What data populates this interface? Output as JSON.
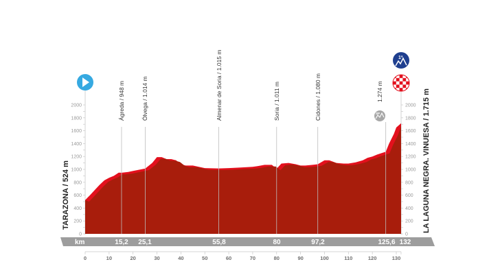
{
  "chart_data": {
    "type": "area",
    "title": "",
    "xlabel": "km",
    "ylabel": "m",
    "xlim": [
      0,
      132
    ],
    "ylim": [
      0,
      2000
    ],
    "grid": false,
    "x_ticks": [
      0,
      10,
      20,
      30,
      40,
      50,
      60,
      70,
      80,
      90,
      100,
      110,
      120,
      130
    ],
    "y_ticks": [
      0,
      200,
      400,
      600,
      800,
      1000,
      1200,
      1400,
      1600,
      1800,
      2000
    ],
    "profile": {
      "km": [
        0,
        2,
        4,
        6,
        8,
        10,
        12,
        14,
        15.2,
        18,
        20,
        22,
        25.1,
        28,
        30,
        32,
        34,
        36,
        38,
        40,
        42,
        45,
        50,
        55.8,
        60,
        65,
        70,
        72,
        75,
        78,
        80,
        82,
        85,
        88,
        90,
        92,
        95,
        97.2,
        100,
        102,
        105,
        108,
        110,
        113,
        116,
        118,
        120,
        122,
        125.6,
        127,
        129,
        130,
        132
      ],
      "elevation_m": [
        524,
        600,
        680,
        760,
        830,
        870,
        900,
        950,
        948,
        960,
        975,
        990,
        1014,
        1100,
        1190,
        1190,
        1160,
        1160,
        1140,
        1080,
        1060,
        1060,
        1020,
        1015,
        1020,
        1030,
        1040,
        1050,
        1070,
        1070,
        1011,
        1090,
        1100,
        1080,
        1060,
        1060,
        1070,
        1080,
        1140,
        1140,
        1100,
        1090,
        1090,
        1110,
        1140,
        1180,
        1200,
        1230,
        1274,
        1400,
        1550,
        1650,
        1715
      ]
    },
    "waypoints": [
      {
        "name": "Ágreda",
        "km": 15.2,
        "elevation_m": 948,
        "label": "Ágreda / 948 m"
      },
      {
        "name": "Ólvega",
        "km": 25.1,
        "elevation_m": 1014,
        "label": "Ólvega / 1.014 m"
      },
      {
        "name": "Almenar de Soria",
        "km": 55.8,
        "elevation_m": 1015,
        "label": "Almenar de Soria / 1.015 m"
      },
      {
        "name": "Soria",
        "km": 80,
        "elevation_m": 1011,
        "label": "Soria / 1.011 m"
      },
      {
        "name": "Cidones",
        "km": 97.2,
        "elevation_m": 1080,
        "label": "Cidones / 1.080 m"
      },
      {
        "name": "Sprint",
        "km": 125.6,
        "elevation_m": 1274,
        "label": "1.274 m"
      }
    ],
    "km_markers": [
      "15,2",
      "25,1",
      "55,8",
      "80",
      "97,2",
      "125,6",
      "132"
    ],
    "start": {
      "label": "TARAZONA / 524 m",
      "km": 0,
      "elevation_m": 524
    },
    "finish": {
      "label": "LA LAGUNA NEGRA. VINUESA / 1.715 m",
      "km": 132,
      "elevation_m": 1715,
      "category": "1ª"
    }
  },
  "labels": {
    "km_unit": "km",
    "start": "TARAZONA / 524 m",
    "finish": "LA LAGUNA NEGRA. VINUESA / 1.715 m",
    "wp0": "Ágreda / 948 m",
    "wp1": "Ólvega / 1.014 m",
    "wp2": "Almenar de Soria / 1.015 m",
    "wp3": "Soria / 1.011 m",
    "wp4": "Cidones / 1.080 m",
    "wp5": "1.274 m",
    "km0": "15,2",
    "km1": "25,1",
    "km2": "55,8",
    "km3": "80",
    "km4": "97,2",
    "km5": "125,6",
    "km6": "132",
    "climb_category": "1ª",
    "sprint_badge": "SP"
  },
  "colors": {
    "profile_dark": "#a81d0c",
    "profile_bright": "#e3101d",
    "km_bar": "#9d9d9d",
    "start_icon": "#36a9e1",
    "climb_icon": "#1f3f8f",
    "finish_red": "#e3101d",
    "sprint_icon": "#a7a7a7"
  }
}
